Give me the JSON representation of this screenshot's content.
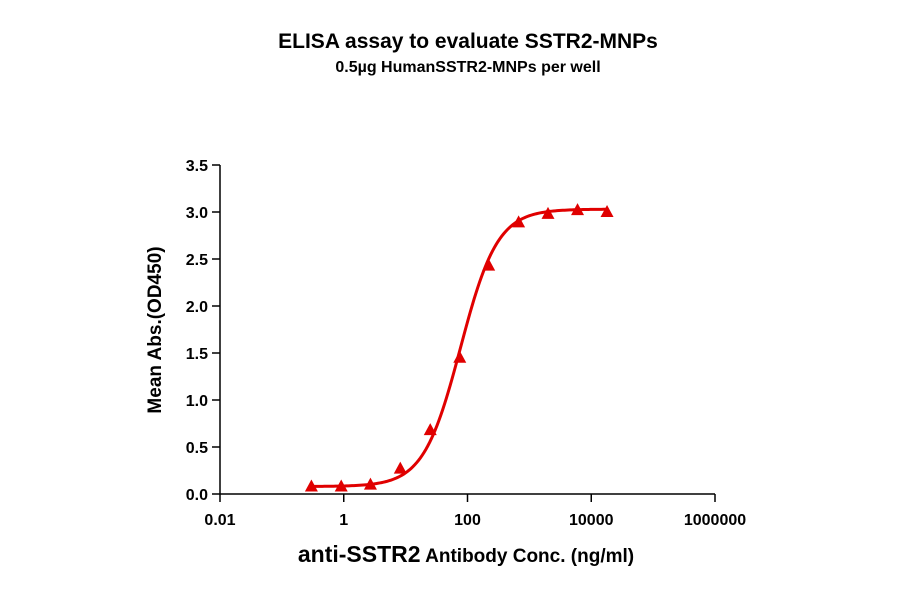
{
  "chart_data": {
    "type": "scatter",
    "title": "ELISA assay to evaluate SSTR2-MNPs",
    "subtitle": "0.5µg HumanSSTR2-MNPs per well",
    "xlabel_prefix": "anti-SSTR2",
    "xlabel_suffix": " Antibody Conc. (ng/ml)",
    "ylabel": "Mean Abs.(OD450)",
    "xscale": "log",
    "xlim": [
      0.01,
      1000000
    ],
    "ylim": [
      0,
      3.5
    ],
    "x_ticks": [
      0.01,
      1,
      100,
      10000,
      1000000
    ],
    "x_tick_labels": [
      "0.01",
      "1",
      "100",
      "10000",
      "1000000"
    ],
    "y_ticks": [
      0,
      0.5,
      1,
      1.5,
      2,
      2.5,
      3,
      3.5
    ],
    "y_tick_labels": [
      "0.0",
      "0.5",
      "1.0",
      "1.5",
      "2.0",
      "2.5",
      "3.0",
      "3.5"
    ],
    "grid": false,
    "marker": "triangle",
    "series_color": "#e00000",
    "series": [
      {
        "x": [
          0.3,
          0.91,
          2.7,
          8.2,
          25,
          75,
          220,
          670,
          2000,
          6000,
          18000
        ],
        "y": [
          0.08,
          0.08,
          0.1,
          0.27,
          0.68,
          1.45,
          2.43,
          2.89,
          2.98,
          3.02,
          3.0
        ]
      }
    ],
    "fit_curve": {
      "bottom": 0.08,
      "top": 3.03,
      "ec50": 77,
      "hill": 1.45
    }
  }
}
